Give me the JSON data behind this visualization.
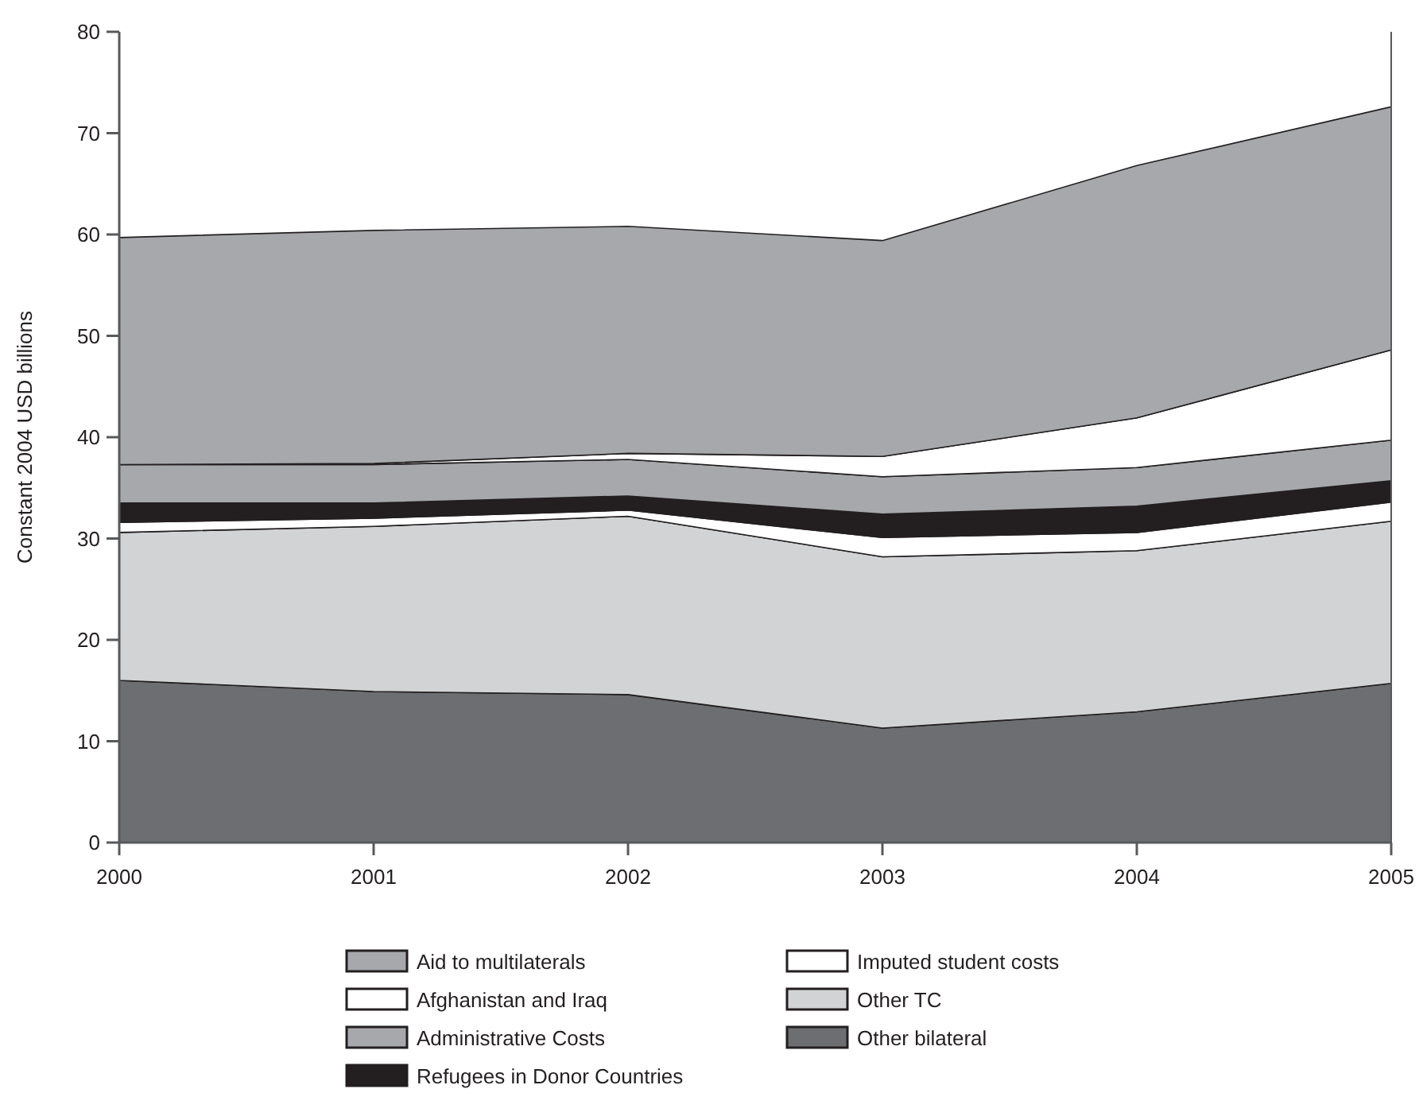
{
  "chart_data": {
    "type": "area",
    "stacked": true,
    "ylabel": "Constant 2004 USD billions",
    "x": [
      2000,
      2001,
      2002,
      2003,
      2004,
      2005
    ],
    "xlim": [
      2000,
      2005
    ],
    "xticks": [
      2000,
      2001,
      2002,
      2003,
      2004,
      2005
    ],
    "ylim": [
      0,
      80
    ],
    "yticks": [
      0,
      10,
      20,
      30,
      40,
      50,
      60,
      70,
      80
    ],
    "grid": false,
    "legend": "bottom",
    "series": [
      {
        "name": "Other bilateral",
        "color": "#6d6e71",
        "values": [
          16.0,
          14.9,
          14.6,
          11.3,
          12.9,
          15.7
        ]
      },
      {
        "name": "Other TC",
        "color": "#d1d3d4",
        "values": [
          14.6,
          16.3,
          17.6,
          16.9,
          15.9,
          16.0
        ]
      },
      {
        "name": "Imputed student costs",
        "color": "#ffffff",
        "values": [
          1.0,
          0.8,
          0.6,
          1.9,
          1.8,
          1.9
        ]
      },
      {
        "name": "Refugees in Donor Countries",
        "color": "#231f20",
        "values": [
          1.9,
          1.5,
          1.4,
          2.3,
          2.6,
          2.1
        ]
      },
      {
        "name": "Administrative Costs",
        "color": "#a6a8ab",
        "values": [
          3.8,
          3.8,
          3.6,
          3.7,
          3.8,
          4.0
        ]
      },
      {
        "name": "Afghanistan and Iraq",
        "color": "#ffffff",
        "values": [
          0,
          0.1,
          0.6,
          2.0,
          4.9,
          8.9
        ]
      },
      {
        "name": "Aid to multilaterals",
        "color": "#a6a8ab",
        "values": [
          22.4,
          23.0,
          22.4,
          21.3,
          24.9,
          24.0
        ]
      }
    ]
  }
}
